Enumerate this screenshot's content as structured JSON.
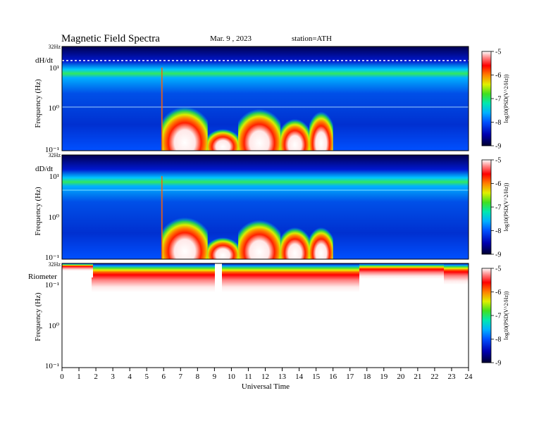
{
  "header": {
    "title": "Magnetic  Field  Spectra",
    "date": "Mar. 9  , 2023",
    "station": "station=ATH"
  },
  "chart_data": [
    {
      "type": "heatmap",
      "panel_label": "dH/dt",
      "top_label": "32Hz",
      "ylabel": "Frequency  (Hz)",
      "y_scale": "log",
      "y_ticks": [
        "10¹",
        "10⁰",
        "10⁻¹"
      ],
      "x_range": [
        0,
        24
      ],
      "colorbar": {
        "label": "log10(PSD(V^2/Hz))",
        "ticks": [
          "-5",
          "-6",
          "-7",
          "-8",
          "-9"
        ],
        "range": [
          -9,
          -5
        ]
      },
      "activity": [
        {
          "t0": 5.9,
          "t1": 8.6,
          "peak_hz": 0.7
        },
        {
          "t0": 8.6,
          "t1": 10.4,
          "peak_hz": 0.15
        },
        {
          "t0": 10.4,
          "t1": 12.9,
          "peak_hz": 0.6
        },
        {
          "t0": 12.9,
          "t1": 14.6,
          "peak_hz": 0.3
        },
        {
          "t0": 14.6,
          "t1": 16.0,
          "peak_hz": 0.5
        }
      ]
    },
    {
      "type": "heatmap",
      "panel_label": "dD/dt",
      "top_label": "32Hz",
      "ylabel": "Frequency  (Hz)",
      "y_scale": "log",
      "y_ticks": [
        "10¹",
        "10⁰",
        "10⁻¹"
      ],
      "x_range": [
        0,
        24
      ],
      "colorbar": {
        "label": "log10(PSD(V^2/Hz))",
        "ticks": [
          "-5",
          "-6",
          "-7",
          "-8",
          "-9"
        ],
        "range": [
          -9,
          -5
        ]
      },
      "activity": [
        {
          "t0": 5.9,
          "t1": 8.6,
          "peak_hz": 0.6
        },
        {
          "t0": 8.6,
          "t1": 10.4,
          "peak_hz": 0.15
        },
        {
          "t0": 10.4,
          "t1": 12.9,
          "peak_hz": 0.5
        },
        {
          "t0": 12.9,
          "t1": 14.6,
          "peak_hz": 0.3
        },
        {
          "t0": 14.6,
          "t1": 16.0,
          "peak_hz": 0.3
        }
      ]
    },
    {
      "type": "heatmap",
      "panel_label": "Riometer",
      "top_label": "32Hz",
      "ylabel": "Frequency  (Hz)",
      "y_scale": "log",
      "y_ticks": [
        "10⁻¹",
        "10⁰",
        "10⁻¹"
      ],
      "x_range": [
        0,
        24
      ],
      "xlabel": "Universal Time",
      "x_ticks": [
        "0",
        "1",
        "2",
        "3",
        "4",
        "5",
        "6",
        "7",
        "8",
        "9",
        "10",
        "11",
        "12",
        "13",
        "14",
        "15",
        "16",
        "17",
        "18",
        "19",
        "20",
        "21",
        "22",
        "23",
        "24"
      ],
      "colorbar": {
        "label": "log10(PSD(V^2/Hz))",
        "ticks": [
          "-5",
          "-6",
          "-7",
          "-8",
          "-9"
        ],
        "range": [
          -9,
          -5
        ]
      },
      "data_gap": [
        9.0,
        9.4
      ]
    }
  ],
  "colors": {
    "spectral": [
      "#00003a",
      "#0000a0",
      "#0030ff",
      "#00a0ff",
      "#00e8c0",
      "#30e040",
      "#c8f000",
      "#ffd000",
      "#ff6000",
      "#ff0000",
      "#ffffff"
    ]
  }
}
